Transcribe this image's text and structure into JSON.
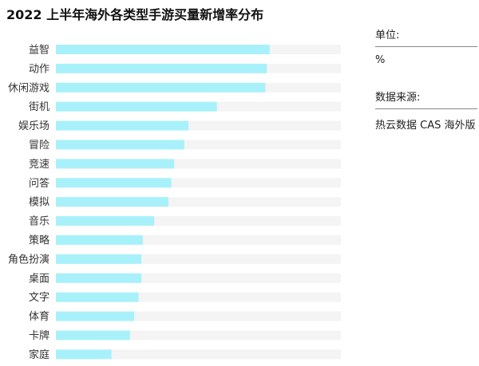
{
  "title": "2022 上半年海外各类型手游买量新增率分布",
  "side_panel": {
    "unit_label": "单位:",
    "unit_value": "%",
    "source_label": "数据来源:",
    "source_value": "热云数据 CAS 海外版"
  },
  "colors": {
    "bar": "#A8F1FB",
    "track": "#F4F4F4",
    "label": "#333333"
  },
  "chart_data": {
    "type": "bar",
    "orientation": "horizontal",
    "title": "2022 上半年海外各类型手游买量新增率分布",
    "unit": "%",
    "categories": [
      "益智",
      "动作",
      "休闲游戏",
      "街机",
      "娱乐场",
      "冒险",
      "竞速",
      "问答",
      "模拟",
      "音乐",
      "策略",
      "角色扮演",
      "桌面",
      "文字",
      "体育",
      "卡牌",
      "家庭"
    ],
    "values": [
      75,
      74,
      73.5,
      56.5,
      46.5,
      45,
      41.5,
      40.5,
      39.5,
      34.5,
      30.5,
      30,
      30,
      29,
      27.5,
      26,
      19.5
    ],
    "xlim": [
      0,
      100
    ],
    "axis_labels_visible": false,
    "grid": false,
    "legend": "none"
  }
}
